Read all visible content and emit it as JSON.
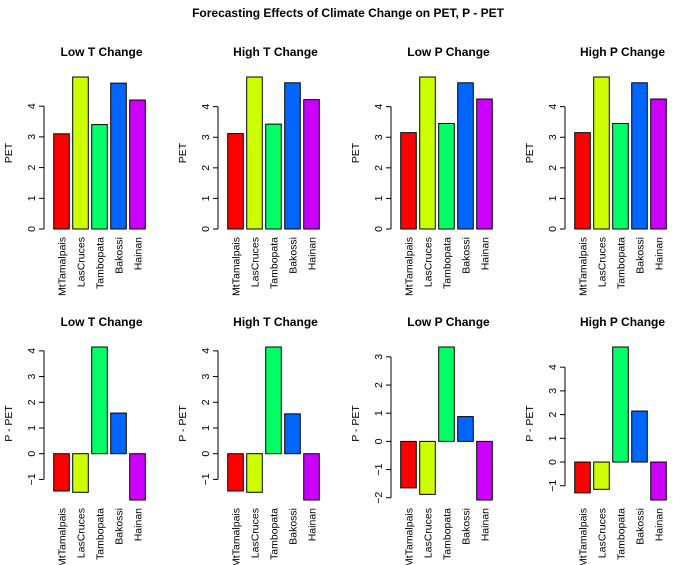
{
  "page_title": "Forecasting Effects of Climate Change on PET, P - PET",
  "chart_data": [
    {
      "type": "bar",
      "title": "Low T Change",
      "ylabel": "PET",
      "categories": [
        "MtTamalpais",
        "LasCruces",
        "Tambopata",
        "Bakossi",
        "Hainan"
      ],
      "values": [
        3.1,
        4.95,
        3.4,
        4.75,
        4.2
      ],
      "ylim": [
        0,
        4.95
      ],
      "yticks": [
        0,
        1,
        2,
        3,
        4
      ],
      "colors": [
        "#ff0000",
        "#ccff00",
        "#00ff66",
        "#0066ff",
        "#cc00ff"
      ]
    },
    {
      "type": "bar",
      "title": "High T Change",
      "ylabel": "PET",
      "categories": [
        "MtTamalpais",
        "LasCruces",
        "Tambopata",
        "Bakossi",
        "Hainan"
      ],
      "values": [
        3.12,
        4.97,
        3.43,
        4.78,
        4.23
      ],
      "ylim": [
        0,
        4.97
      ],
      "yticks": [
        0,
        1,
        2,
        3,
        4
      ],
      "colors": [
        "#ff0000",
        "#ccff00",
        "#00ff66",
        "#0066ff",
        "#cc00ff"
      ]
    },
    {
      "type": "bar",
      "title": "Low P Change",
      "ylabel": "PET",
      "categories": [
        "MtTamalpais",
        "LasCruces",
        "Tambopata",
        "Bakossi",
        "Hainan"
      ],
      "values": [
        3.15,
        4.97,
        3.45,
        4.78,
        4.25
      ],
      "ylim": [
        0,
        4.97
      ],
      "yticks": [
        0,
        1,
        2,
        3,
        4
      ],
      "colors": [
        "#ff0000",
        "#ccff00",
        "#00ff66",
        "#0066ff",
        "#cc00ff"
      ]
    },
    {
      "type": "bar",
      "title": "High P Change",
      "ylabel": "PET",
      "categories": [
        "MtTamalpais",
        "LasCruces",
        "Tambopata",
        "Bakossi",
        "Hainan"
      ],
      "values": [
        3.15,
        4.97,
        3.45,
        4.78,
        4.25
      ],
      "ylim": [
        0,
        4.97
      ],
      "yticks": [
        0,
        1,
        2,
        3,
        4
      ],
      "colors": [
        "#ff0000",
        "#ccff00",
        "#00ff66",
        "#0066ff",
        "#cc00ff"
      ]
    },
    {
      "type": "bar",
      "title": "Low T Change",
      "ylabel": "P - PET",
      "categories": [
        "MtTamalpais",
        "LasCruces",
        "Tambopata",
        "Bakossi",
        "Hainan"
      ],
      "values": [
        -1.45,
        -1.5,
        4.15,
        1.58,
        -1.8
      ],
      "ylim": [
        -1.8,
        4.15
      ],
      "yticks": [
        -1,
        0,
        1,
        2,
        3,
        4
      ],
      "colors": [
        "#ff0000",
        "#ccff00",
        "#00ff66",
        "#0066ff",
        "#cc00ff"
      ]
    },
    {
      "type": "bar",
      "title": "High T Change",
      "ylabel": "P - PET",
      "categories": [
        "MtTamalpais",
        "LasCruces",
        "Tambopata",
        "Bakossi",
        "Hainan"
      ],
      "values": [
        -1.45,
        -1.5,
        4.15,
        1.55,
        -1.8
      ],
      "ylim": [
        -1.8,
        4.15
      ],
      "yticks": [
        -1,
        0,
        1,
        2,
        3,
        4
      ],
      "colors": [
        "#ff0000",
        "#ccff00",
        "#00ff66",
        "#0066ff",
        "#cc00ff"
      ]
    },
    {
      "type": "bar",
      "title": "Low P Change",
      "ylabel": "P - PET",
      "categories": [
        "MtTamalpais",
        "LasCruces",
        "Tambopata",
        "Bakossi",
        "Hainan"
      ],
      "values": [
        -1.65,
        -1.88,
        3.35,
        0.88,
        -2.08
      ],
      "ylim": [
        -2.08,
        3.35
      ],
      "yticks": [
        -2,
        -1,
        0,
        1,
        2,
        3
      ],
      "colors": [
        "#ff0000",
        "#ccff00",
        "#00ff66",
        "#0066ff",
        "#cc00ff"
      ]
    },
    {
      "type": "bar",
      "title": "High P Change",
      "ylabel": "P - PET",
      "categories": [
        "MtTamalpais",
        "LasCruces",
        "Tambopata",
        "Bakossi",
        "Hainan"
      ],
      "values": [
        -1.3,
        -1.15,
        4.85,
        2.15,
        -1.6
      ],
      "ylim": [
        -1.6,
        4.85
      ],
      "yticks": [
        -1,
        0,
        1,
        2,
        3,
        4
      ],
      "colors": [
        "#ff0000",
        "#ccff00",
        "#00ff66",
        "#0066ff",
        "#cc00ff"
      ]
    }
  ]
}
